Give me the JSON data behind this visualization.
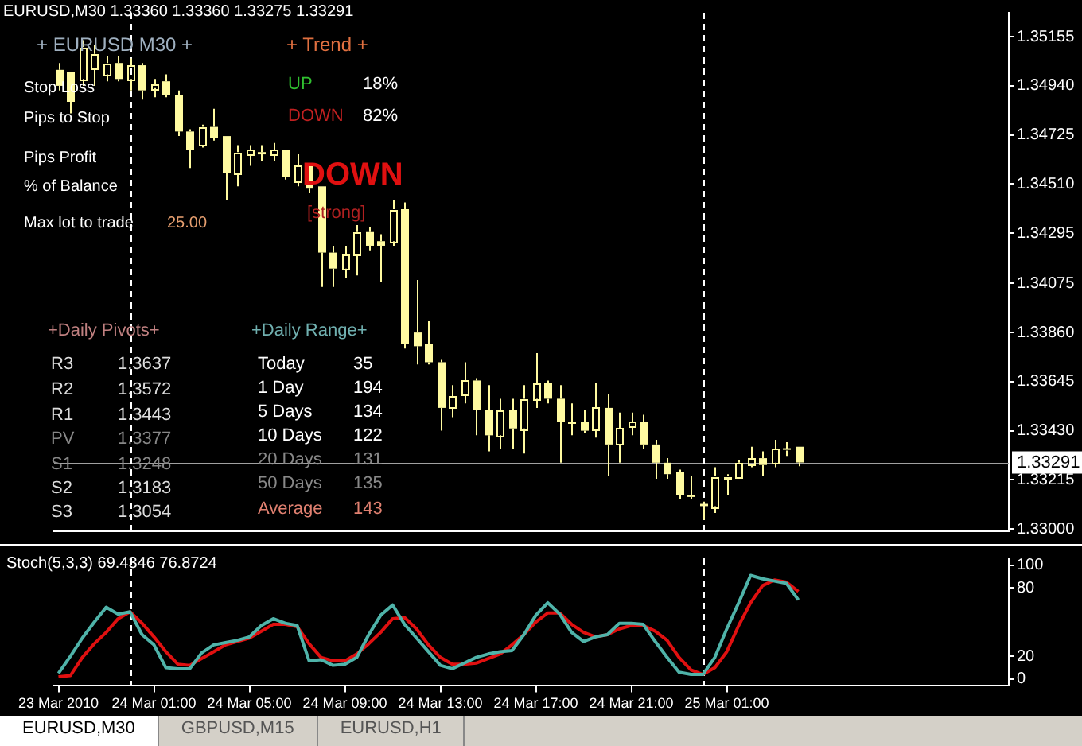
{
  "chart_data": [
    {
      "type": "candlestick",
      "title": "EURUSD,M30  1.33360 1.33360 1.33275 1.33291",
      "color": "#fffaa0",
      "tick_labels": "y",
      "x": [
        "2010-03-23T21:00",
        "2010-03-23T21:30",
        "2010-03-23T22:00",
        "2010-03-23T22:30",
        "2010-03-23T23:00",
        "2010-03-23T23:30",
        "2010-03-24T00:00",
        "2010-03-24T00:30",
        "2010-03-24T01:00",
        "2010-03-24T01:30",
        "2010-03-24T02:00",
        "2010-03-24T02:30",
        "2010-03-24T03:00",
        "2010-03-24T03:30",
        "2010-03-24T04:00",
        "2010-03-24T04:30",
        "2010-03-24T05:00",
        "2010-03-24T05:30",
        "2010-03-24T06:00",
        "2010-03-24T06:30",
        "2010-03-24T07:00",
        "2010-03-24T07:30",
        "2010-03-24T08:00",
        "2010-03-24T08:30",
        "2010-03-24T09:00",
        "2010-03-24T09:30",
        "2010-03-24T10:00",
        "2010-03-24T10:30",
        "2010-03-24T11:00",
        "2010-03-24T11:30",
        "2010-03-24T12:00",
        "2010-03-24T12:30",
        "2010-03-24T13:00",
        "2010-03-24T13:30",
        "2010-03-24T14:00",
        "2010-03-24T14:30",
        "2010-03-24T15:00",
        "2010-03-24T15:30",
        "2010-03-24T16:00",
        "2010-03-24T16:30",
        "2010-03-24T17:00",
        "2010-03-24T17:30",
        "2010-03-24T18:00",
        "2010-03-24T18:30",
        "2010-03-24T19:00",
        "2010-03-24T19:30",
        "2010-03-24T20:00",
        "2010-03-24T20:30",
        "2010-03-24T21:00",
        "2010-03-24T21:30",
        "2010-03-24T22:00",
        "2010-03-24T22:30",
        "2010-03-24T23:00",
        "2010-03-24T23:30",
        "2010-03-25T00:00",
        "2010-03-25T00:30",
        "2010-03-25T01:00",
        "2010-03-25T01:30",
        "2010-03-25T02:00",
        "2010-03-25T02:30",
        "2010-03-25T03:00",
        "2010-03-25T03:30",
        "2010-03-25T04:00"
      ],
      "ohlc": [
        [
          1.3501,
          1.3504,
          1.3492,
          1.3494
        ],
        [
          1.35,
          1.35,
          1.3482,
          1.3487
        ],
        [
          1.3497,
          1.3514,
          1.3494,
          1.3511
        ],
        [
          1.3502,
          1.3512,
          1.3494,
          1.3508
        ],
        [
          1.3499,
          1.3507,
          1.3496,
          1.3504
        ],
        [
          1.3504,
          1.3507,
          1.3496,
          1.3497
        ],
        [
          1.3497,
          1.3506,
          1.3492,
          1.3503
        ],
        [
          1.3503,
          1.3504,
          1.3488,
          1.3492
        ],
        [
          1.3493,
          1.3497,
          1.3489,
          1.3495
        ],
        [
          1.3496,
          1.3499,
          1.3489,
          1.349
        ],
        [
          1.349,
          1.3492,
          1.3472,
          1.3474
        ],
        [
          1.3474,
          1.3475,
          1.3458,
          1.3466
        ],
        [
          1.3468,
          1.3477,
          1.3467,
          1.3476
        ],
        [
          1.3476,
          1.3484,
          1.347,
          1.3471
        ],
        [
          1.3472,
          1.3472,
          1.3444,
          1.3456
        ],
        [
          1.3456,
          1.3468,
          1.345,
          1.3465
        ],
        [
          1.3464,
          1.3468,
          1.3459,
          1.3466
        ],
        [
          1.3465,
          1.3468,
          1.3461,
          1.3464
        ],
        [
          1.3464,
          1.3469,
          1.3461,
          1.3466
        ],
        [
          1.3466,
          1.3466,
          1.3453,
          1.3454
        ],
        [
          1.3452,
          1.3464,
          1.345,
          1.3459
        ],
        [
          1.3459,
          1.346,
          1.3447,
          1.3449
        ],
        [
          1.345,
          1.345,
          1.3406,
          1.3421
        ],
        [
          1.3421,
          1.3424,
          1.3406,
          1.3414
        ],
        [
          1.3414,
          1.3424,
          1.341,
          1.342
        ],
        [
          1.342,
          1.3433,
          1.3411,
          1.343
        ],
        [
          1.343,
          1.3432,
          1.3422,
          1.3424
        ],
        [
          1.3426,
          1.3429,
          1.3408,
          1.3424
        ],
        [
          1.3426,
          1.3444,
          1.3424,
          1.344
        ],
        [
          1.344,
          1.3443,
          1.3379,
          1.3381
        ],
        [
          1.3386,
          1.3409,
          1.3372,
          1.338
        ],
        [
          1.3381,
          1.3391,
          1.3372,
          1.3373
        ],
        [
          1.3373,
          1.3374,
          1.3343,
          1.3353
        ],
        [
          1.3353,
          1.3363,
          1.3349,
          1.3358
        ],
        [
          1.3359,
          1.3373,
          1.3355,
          1.3365
        ],
        [
          1.3365,
          1.3366,
          1.3341,
          1.3352
        ],
        [
          1.3352,
          1.3363,
          1.3334,
          1.3341
        ],
        [
          1.3341,
          1.3357,
          1.3335,
          1.3352
        ],
        [
          1.3352,
          1.3357,
          1.3335,
          1.3344
        ],
        [
          1.3344,
          1.3363,
          1.3333,
          1.3357
        ],
        [
          1.3357,
          1.3377,
          1.3353,
          1.3364
        ],
        [
          1.3364,
          1.3365,
          1.3355,
          1.3357
        ],
        [
          1.3357,
          1.3363,
          1.3329,
          1.3347
        ],
        [
          1.3347,
          1.3355,
          1.3341,
          1.3346
        ],
        [
          1.3347,
          1.3352,
          1.3342,
          1.3343
        ],
        [
          1.3343,
          1.3364,
          1.334,
          1.3353
        ],
        [
          1.3353,
          1.3359,
          1.3323,
          1.3337
        ],
        [
          1.3337,
          1.3351,
          1.3329,
          1.3344
        ],
        [
          1.3345,
          1.3351,
          1.3341,
          1.3347
        ],
        [
          1.3347,
          1.335,
          1.3335,
          1.3337
        ],
        [
          1.3337,
          1.3339,
          1.3322,
          1.3329
        ],
        [
          1.3329,
          1.3331,
          1.3322,
          1.3324
        ],
        [
          1.3325,
          1.3326,
          1.3313,
          1.3315
        ],
        [
          1.3315,
          1.3323,
          1.3313,
          1.3314
        ],
        [
          1.3311,
          1.3312,
          1.3304,
          1.331
        ],
        [
          1.331,
          1.3327,
          1.3307,
          1.3323
        ],
        [
          1.3322,
          1.3324,
          1.3315,
          1.3323
        ],
        [
          1.3323,
          1.333,
          1.3323,
          1.3329
        ],
        [
          1.3328,
          1.3336,
          1.3327,
          1.3331
        ],
        [
          1.3331,
          1.3334,
          1.3323,
          1.3328
        ],
        [
          1.3329,
          1.3339,
          1.3327,
          1.3335
        ],
        [
          1.3335,
          1.3338,
          1.3332,
          1.3335
        ],
        [
          1.3336,
          1.3336,
          1.33275,
          1.33291
        ]
      ],
      "xlim": [
        "2010-03-23T20:49",
        "2010-03-25T12:49"
      ],
      "ylim": [
        1.3299,
        1.3526
      ],
      "yticks": [
        1.35155,
        {
          "value": 1.3494,
          "label": "1.34940"
        },
        1.34725,
        {
          "value": 1.3451,
          "label": "1.34510"
        },
        1.34295,
        1.34075,
        {
          "value": 1.3386,
          "label": "1.33860"
        },
        1.33645,
        {
          "value": 1.3343,
          "label": "1.33430"
        },
        1.33215,
        {
          "value": 1.33,
          "label": "1.33000"
        }
      ],
      "ref_lines": [
        {
          "axis": "y",
          "value": 1.33291,
          "label": "1.33291",
          "color": "#a0a0a0"
        },
        {
          "axis": "x",
          "value": "2010-03-24T00:00",
          "color": "#ffffff",
          "line_style": "dashed"
        },
        {
          "axis": "x",
          "value": "2010-03-25T00:00",
          "color": "#ffffff",
          "line_style": "dashed"
        }
      ],
      "annotations": [
        "+ EURUSD  M30  +",
        "Stop Loss",
        "Pips to Stop",
        "Pips Profit",
        "% of Balance",
        "Max lot to trade",
        "25.00",
        "+  Trend  +",
        "UP",
        "18%",
        "DOWN",
        "82%",
        "DOWN",
        "[strong]",
        "+Daily Pivots+",
        "R3",
        "1.3637",
        "R2",
        "1.3572",
        "R1",
        "1.3443",
        "PV",
        "1.3377",
        "S1",
        "1.3248",
        "S2",
        "1.3183",
        "S3",
        "1.3054",
        "+Daily Range+",
        "Today",
        "35",
        "1 Day",
        "194",
        "5 Days",
        "134",
        "10 Days",
        "122",
        "20 Days",
        "131",
        "50 Days",
        "135",
        "Average",
        "143"
      ]
    },
    {
      "type": "line",
      "title": "Stoch(5,3,3) 69.4346 76.8724",
      "x": [
        "2010-03-23T21:00",
        "2010-03-23T21:30",
        "2010-03-23T22:00",
        "2010-03-23T22:30",
        "2010-03-23T23:00",
        "2010-03-23T23:30",
        "2010-03-24T00:00",
        "2010-03-24T00:30",
        "2010-03-24T01:00",
        "2010-03-24T01:30",
        "2010-03-24T02:00",
        "2010-03-24T02:30",
        "2010-03-24T03:00",
        "2010-03-24T03:30",
        "2010-03-24T04:00",
        "2010-03-24T04:30",
        "2010-03-24T05:00",
        "2010-03-24T05:30",
        "2010-03-24T06:00",
        "2010-03-24T06:30",
        "2010-03-24T07:00",
        "2010-03-24T07:30",
        "2010-03-24T08:00",
        "2010-03-24T08:30",
        "2010-03-24T09:00",
        "2010-03-24T09:30",
        "2010-03-24T10:00",
        "2010-03-24T10:30",
        "2010-03-24T11:00",
        "2010-03-24T11:30",
        "2010-03-24T12:00",
        "2010-03-24T12:30",
        "2010-03-24T13:00",
        "2010-03-24T13:30",
        "2010-03-24T14:00",
        "2010-03-24T14:30",
        "2010-03-24T15:00",
        "2010-03-24T15:30",
        "2010-03-24T16:00",
        "2010-03-24T16:30",
        "2010-03-24T17:00",
        "2010-03-24T17:30",
        "2010-03-24T18:00",
        "2010-03-24T18:30",
        "2010-03-24T19:00",
        "2010-03-24T19:30",
        "2010-03-24T20:00",
        "2010-03-24T20:30",
        "2010-03-24T21:00",
        "2010-03-24T21:30",
        "2010-03-24T22:00",
        "2010-03-24T22:30",
        "2010-03-24T23:00",
        "2010-03-24T23:30",
        "2010-03-25T00:00",
        "2010-03-25T00:30",
        "2010-03-25T01:00",
        "2010-03-25T01:30",
        "2010-03-25T02:00",
        "2010-03-25T02:30",
        "2010-03-25T03:00",
        "2010-03-25T03:30",
        "2010-03-25T04:00"
      ],
      "series": [
        {
          "color": "#4fb3a9",
          "values": [
            5,
            20,
            36,
            50,
            63,
            57,
            59,
            39,
            30,
            10,
            9,
            9,
            23,
            30,
            32,
            34,
            37,
            47,
            53,
            49,
            47,
            16,
            17,
            12,
            13,
            19,
            39,
            56,
            65,
            48,
            36,
            24,
            12,
            9,
            14,
            19,
            22,
            24,
            25,
            39,
            56,
            67,
            57,
            41,
            33,
            37,
            39,
            49,
            49,
            48,
            33,
            19,
            6,
            4,
            4,
            19,
            44,
            67,
            91,
            88,
            86,
            84,
            69.4346
          ]
        },
        {
          "color": "#e01010",
          "values": [
            2,
            3,
            19,
            31,
            41,
            53,
            59,
            49,
            37,
            24,
            13,
            12,
            18,
            24,
            30,
            33,
            36,
            42,
            48,
            48,
            46,
            31,
            19,
            16,
            16,
            22,
            31,
            41,
            53,
            54,
            44,
            30,
            19,
            13,
            13,
            14,
            18,
            22,
            30,
            39,
            50,
            58,
            58,
            48,
            41,
            37,
            39,
            44,
            47,
            47,
            42,
            34,
            19,
            8,
            4,
            10,
            24,
            47,
            67,
            82,
            87,
            85,
            76.8724
          ]
        }
      ],
      "xlim": [
        "2010-03-23T20:49",
        "2010-03-25T12:49"
      ],
      "xticks": [
        {
          "value": "2010-03-23T21:00",
          "label": "23 Mar 2010"
        },
        {
          "value": "2010-03-24T01:00",
          "label": "24 Mar 01:00"
        },
        {
          "value": "2010-03-24T05:00",
          "label": "24 Mar 05:00"
        },
        {
          "value": "2010-03-24T09:00",
          "label": "24 Mar 09:00"
        },
        {
          "value": "2010-03-24T13:00",
          "label": "24 Mar 13:00"
        },
        {
          "value": "2010-03-24T17:00",
          "label": "24 Mar 17:00"
        },
        {
          "value": "2010-03-24T21:00",
          "label": "24 Mar 21:00"
        },
        {
          "value": "2010-03-25T01:00",
          "label": "25 Mar 01:00"
        }
      ],
      "ylim": [
        -6,
        106
      ],
      "yticks": [
        0,
        20,
        80,
        100
      ],
      "ref_lines": [
        {
          "axis": "x",
          "value": "2010-03-24T00:00",
          "color": "#ffffff",
          "line_style": "dashed"
        },
        {
          "axis": "x",
          "value": "2010-03-25T00:00",
          "color": "#ffffff",
          "line_style": "dashed"
        }
      ],
      "annotations": [
        "EURUSD,M30",
        "GBPUSD,M15",
        "EURUSD,H1"
      ]
    }
  ]
}
